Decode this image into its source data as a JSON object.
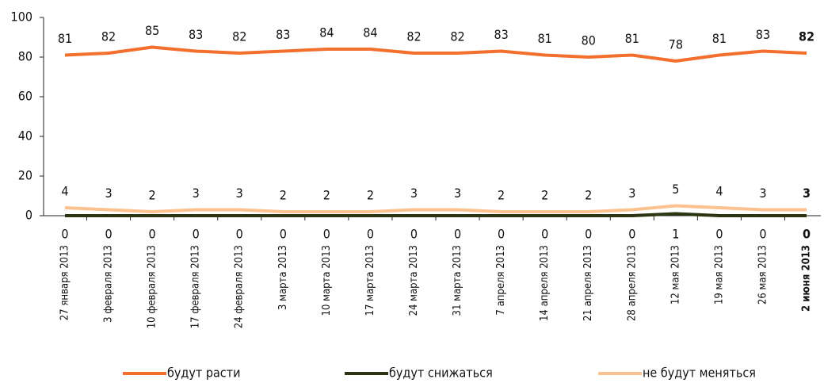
{
  "chart_data": {
    "type": "line",
    "categories": [
      "27 января 2013",
      "3 февраля 2013",
      "10 февраля 2013",
      "17 февраля 2013",
      "24 февраля 2013",
      "3 марта 2013",
      "10 марта 2013",
      "17 марта 2013",
      "24 марта 2013",
      "31 марта 2013",
      "7 апреля 2013",
      "14 апреля 2013",
      "21 апреля 2013",
      "28 апреля 2013",
      "12 мая 2013",
      "19 мая 2013",
      "26 мая 2013",
      "2 июня 2013"
    ],
    "series": [
      {
        "name": "будут расти",
        "color": "#f26f2e",
        "values": [
          81,
          82,
          85,
          83,
          82,
          83,
          84,
          84,
          82,
          82,
          83,
          81,
          80,
          81,
          78,
          81,
          83,
          82
        ]
      },
      {
        "name": "будут снижаться",
        "color": "#2b3512",
        "values": [
          0,
          0,
          0,
          0,
          0,
          0,
          0,
          0,
          0,
          0,
          0,
          0,
          0,
          0,
          1,
          0,
          0,
          0
        ]
      },
      {
        "name": "не будут меняться",
        "color": "#fbc18f",
        "values": [
          4,
          3,
          2,
          3,
          3,
          2,
          2,
          2,
          3,
          3,
          2,
          2,
          2,
          3,
          5,
          4,
          3,
          3
        ]
      }
    ],
    "ylim": [
      0,
      100
    ],
    "yticks": [
      0,
      20,
      40,
      60,
      80,
      100
    ],
    "grid": false
  }
}
